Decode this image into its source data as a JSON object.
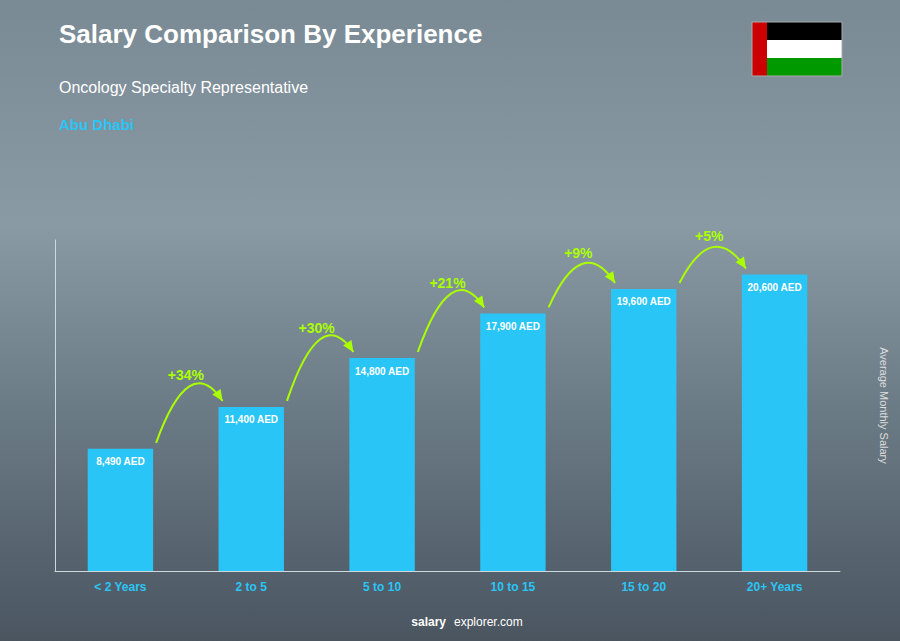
{
  "chart_data": {
    "type": "bar",
    "title": "Salary Comparison By Experience",
    "subtitle": "Oncology Specialty Representative",
    "location": "Abu Dhabi",
    "watermark": [
      "salary",
      "explorer.com"
    ],
    "y_label": "Average Monthly Salary",
    "categories": [
      "< 2 Years",
      "2 to 5",
      "5 to 10",
      "10 to 15",
      "15 to 20",
      "20+ Years"
    ],
    "values": [
      8490,
      11400,
      14800,
      17900,
      19600,
      20600
    ],
    "value_labels": [
      "8,490 AED",
      "11,400 AED",
      "14,800 AED",
      "17,900 AED",
      "19,600 AED",
      "20,600 AED"
    ],
    "data_labels": true,
    "annotations": [
      "+34%",
      "+30%",
      "+21%",
      "+9%",
      "+5%"
    ],
    "color": "#29c5f6",
    "ylim": [
      0,
      23000
    ],
    "tick_labels": "x",
    "grid": false
  }
}
